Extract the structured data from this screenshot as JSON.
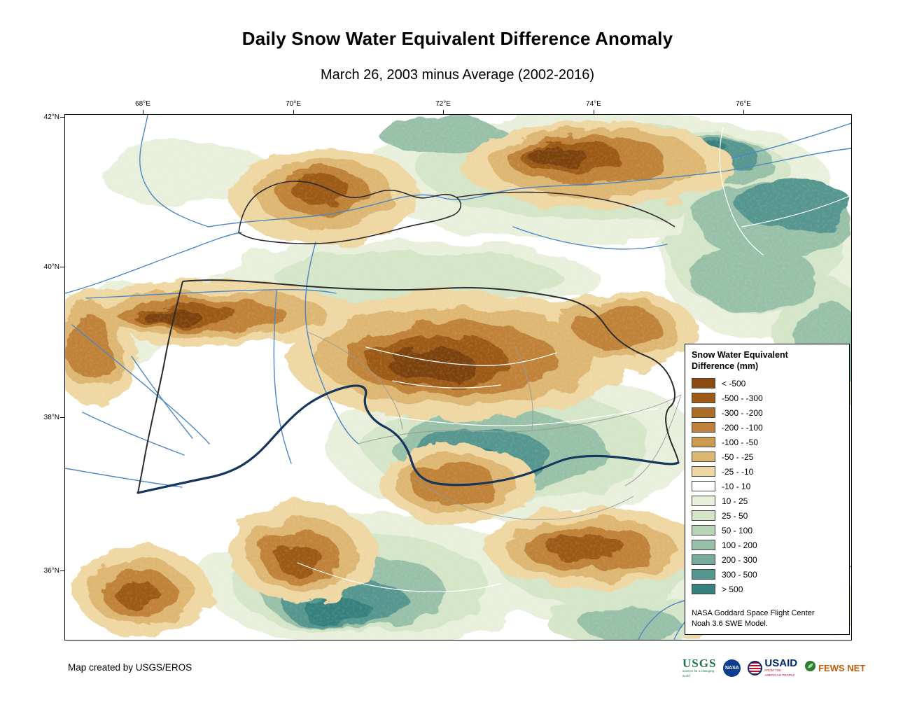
{
  "title": "Daily Snow Water Equivalent Difference Anomaly",
  "subtitle": "March 26, 2003 minus Average (2002-2016)",
  "map": {
    "lon_ticks": [
      "68°E",
      "70°E",
      "72°E",
      "74°E",
      "76°E"
    ],
    "lat_ticks": [
      "42°N",
      "40°N",
      "38°N",
      "36°N"
    ]
  },
  "legend": {
    "title_lines": [
      "Snow Water Equivalent",
      "Difference (mm)"
    ],
    "items": [
      {
        "label": "< -500",
        "color": "#8a4a10"
      },
      {
        "label": "-500 - -300",
        "color": "#9c5a16"
      },
      {
        "label": "-300 - -200",
        "color": "#ad6d24"
      },
      {
        "label": "-200 - -100",
        "color": "#bf8238"
      },
      {
        "label": "-100 - -50",
        "color": "#cd9a52"
      },
      {
        "label": "-50 - -25",
        "color": "#ddb672"
      },
      {
        "label": "-25 - -10",
        "color": "#eed7a2"
      },
      {
        "label": "-10 - 10",
        "color": "#ffffff"
      },
      {
        "label": "10 - 25",
        "color": "#e8f0dc"
      },
      {
        "label": "25 - 50",
        "color": "#d4e5c8"
      },
      {
        "label": "50 - 100",
        "color": "#b8d4b6"
      },
      {
        "label": "100 - 200",
        "color": "#98c0a8"
      },
      {
        "label": "200 - 300",
        "color": "#76ab9c"
      },
      {
        "label": "300 - 500",
        "color": "#55968e"
      },
      {
        "label": "> 500",
        "color": "#35807e"
      }
    ],
    "note_lines": [
      "NASA Goddard Space Flight Center",
      "Noah 3.6 SWE Model."
    ]
  },
  "footer": {
    "credit": "Map created by USGS/EROS"
  },
  "logos": {
    "usgs": {
      "text": "USGS",
      "tagline": "science for a changing world"
    },
    "nasa": {
      "text": "NASA"
    },
    "usaid": {
      "text": "USAID",
      "tagline": "FROM THE AMERICAN PEOPLE"
    },
    "fewsnet": {
      "text": "FEWS NET"
    }
  }
}
